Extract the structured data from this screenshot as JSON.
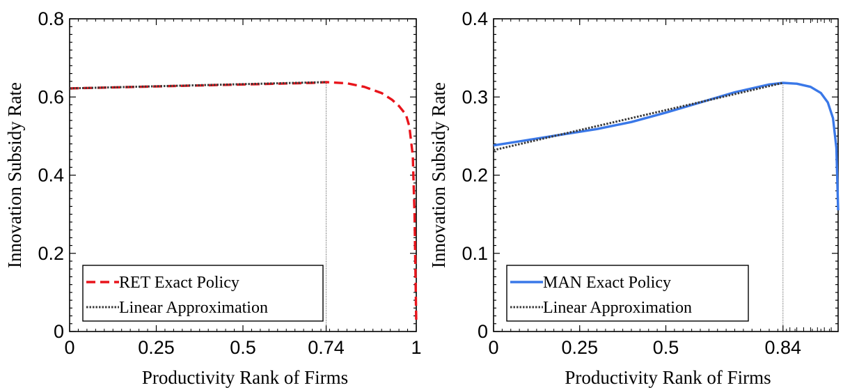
{
  "chart_data": [
    {
      "type": "line",
      "xlabel": "Productivity Rank of Firms",
      "ylabel": "Innovation Subsidy Rate",
      "xlim": [
        0,
        1
      ],
      "ylim": [
        0,
        0.8
      ],
      "xticks": [
        0,
        0.25,
        0.5,
        0.74,
        1
      ],
      "xtick_labels": [
        "0",
        "0.25",
        "0.5",
        "0.74",
        "1"
      ],
      "yticks": [
        0,
        0.2,
        0.4,
        0.6,
        0.8
      ],
      "ytick_labels": [
        "0",
        "0.2",
        "0.4",
        "0.6",
        "0.8"
      ],
      "vline_x": 0.74,
      "legend_position": "bottom-left",
      "series": [
        {
          "name": "RET Exact Policy",
          "color": "#e8141b",
          "style": "dashed",
          "x": [
            0,
            0.1,
            0.2,
            0.3,
            0.4,
            0.5,
            0.6,
            0.7,
            0.74,
            0.8,
            0.85,
            0.9,
            0.93,
            0.95,
            0.97,
            0.98,
            0.99,
            0.995,
            1.0
          ],
          "y": [
            0.622,
            0.624,
            0.626,
            0.628,
            0.63,
            0.632,
            0.634,
            0.636,
            0.638,
            0.635,
            0.626,
            0.61,
            0.593,
            0.577,
            0.555,
            0.525,
            0.45,
            0.3,
            0.02
          ]
        },
        {
          "name": "Linear Approximation",
          "color": "#3a3a3a",
          "style": "dotted",
          "x": [
            0,
            0.74
          ],
          "y": [
            0.622,
            0.638
          ]
        }
      ]
    },
    {
      "type": "line",
      "xlabel": "Productivity Rank of Firms",
      "ylabel": "Innovation Subsidy Rate",
      "xlim": [
        0,
        1
      ],
      "ylim": [
        0,
        0.4
      ],
      "xticks": [
        0,
        0.25,
        0.5,
        0.84
      ],
      "xtick_labels": [
        "0",
        "0.25",
        "0.5",
        "0.84"
      ],
      "yticks": [
        0,
        0.1,
        0.2,
        0.3,
        0.4
      ],
      "ytick_labels": [
        "0",
        "0.1",
        "0.2",
        "0.3",
        "0.4"
      ],
      "vline_x": 0.84,
      "legend_position": "bottom-left",
      "series": [
        {
          "name": "MAN Exact Policy",
          "color": "#3a78e8",
          "style": "solid",
          "x": [
            0,
            0.1,
            0.2,
            0.3,
            0.4,
            0.5,
            0.6,
            0.7,
            0.8,
            0.84,
            0.88,
            0.92,
            0.95,
            0.97,
            0.985,
            0.995,
            1.0
          ],
          "y": [
            0.238,
            0.245,
            0.252,
            0.259,
            0.268,
            0.28,
            0.293,
            0.306,
            0.316,
            0.318,
            0.317,
            0.313,
            0.305,
            0.293,
            0.273,
            0.235,
            0.155
          ]
        },
        {
          "name": "Linear Approximation",
          "color": "#3a3a3a",
          "style": "dotted",
          "x": [
            0,
            0.84
          ],
          "y": [
            0.232,
            0.318
          ]
        }
      ]
    }
  ]
}
